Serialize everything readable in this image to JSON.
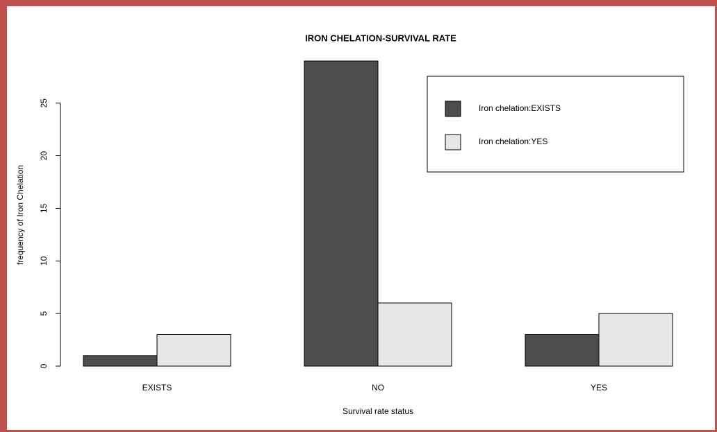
{
  "chart_data": {
    "type": "grouped-bar",
    "title": "IRON CHELATION-SURVIVAL RATE",
    "x_label": "Survival rate status",
    "y_label": "frequency of Iron Chelation",
    "categories": [
      "EXISTS",
      "NO",
      "YES"
    ],
    "series": [
      {
        "name": "Iron chelation:EXISTS",
        "color": "#4d4d4d",
        "values": [
          1,
          29,
          3
        ]
      },
      {
        "name": "Iron chelation:YES",
        "color": "#e6e6e6",
        "values": [
          3,
          6,
          5
        ]
      }
    ],
    "ylim": [
      0,
      29
    ],
    "yticks": [
      0,
      5,
      10,
      15,
      20,
      25
    ],
    "legend": "topright"
  }
}
